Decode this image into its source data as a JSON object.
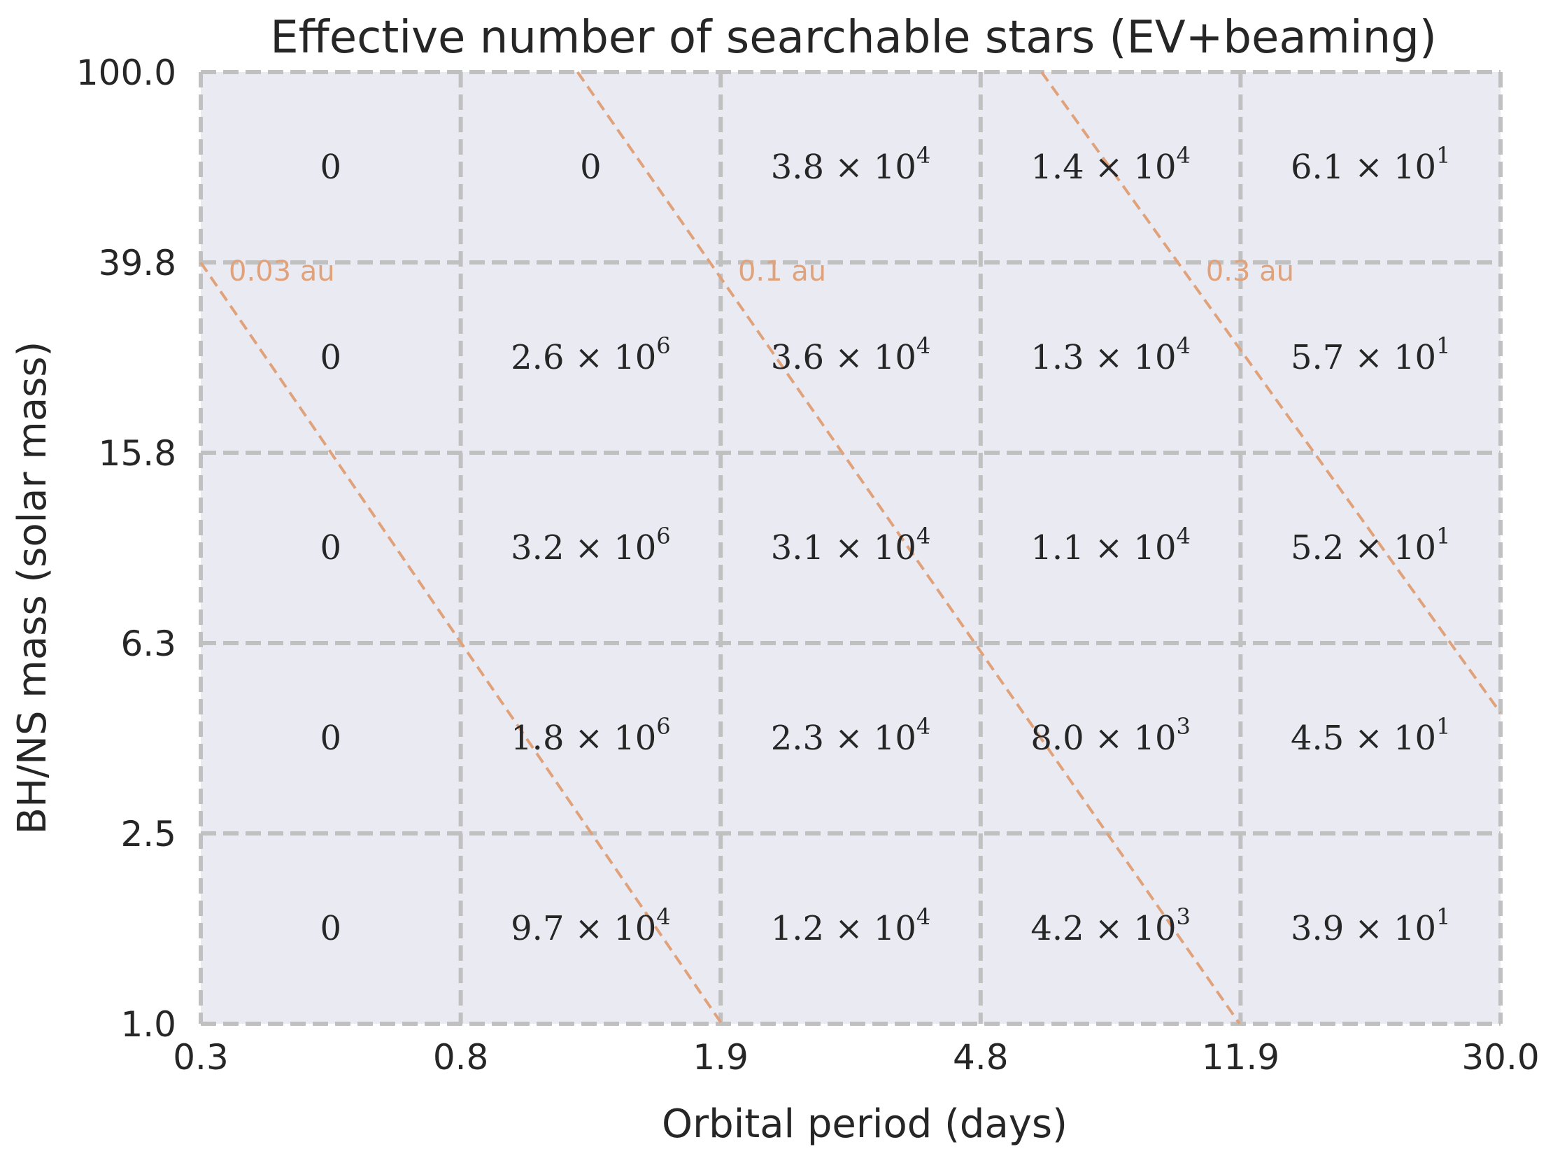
{
  "chart_data": {
    "type": "heatmap",
    "title": "Effective number of searchable stars (EV+beaming)",
    "xlabel": "Orbital period (days)",
    "ylabel": "BH/NS mass (solar mass)",
    "x_scale": "log",
    "y_scale": "log",
    "xlim": [
      0.3,
      30.0
    ],
    "ylim": [
      1.0,
      100.0
    ],
    "x_ticks": [
      "0.3",
      "0.8",
      "1.9",
      "4.8",
      "11.9",
      "30.0"
    ],
    "y_ticks": [
      "1.0",
      "2.5",
      "6.3",
      "15.8",
      "39.8",
      "100.0"
    ],
    "rows_top_to_bottom": [
      [
        {
          "text": "0"
        },
        {
          "text": "0"
        },
        {
          "mantissa": "3.8",
          "exp": "4"
        },
        {
          "mantissa": "1.4",
          "exp": "4"
        },
        {
          "mantissa": "6.1",
          "exp": "1"
        }
      ],
      [
        {
          "text": "0"
        },
        {
          "mantissa": "2.6",
          "exp": "6"
        },
        {
          "mantissa": "3.6",
          "exp": "4"
        },
        {
          "mantissa": "1.3",
          "exp": "4"
        },
        {
          "mantissa": "5.7",
          "exp": "1"
        }
      ],
      [
        {
          "text": "0"
        },
        {
          "mantissa": "3.2",
          "exp": "6"
        },
        {
          "mantissa": "3.1",
          "exp": "4"
        },
        {
          "mantissa": "1.1",
          "exp": "4"
        },
        {
          "mantissa": "5.2",
          "exp": "1"
        }
      ],
      [
        {
          "text": "0"
        },
        {
          "mantissa": "1.8",
          "exp": "6"
        },
        {
          "mantissa": "2.3",
          "exp": "4"
        },
        {
          "mantissa": "8.0",
          "exp": "3"
        },
        {
          "mantissa": "4.5",
          "exp": "1"
        }
      ],
      [
        {
          "text": "0"
        },
        {
          "mantissa": "9.7",
          "exp": "4"
        },
        {
          "mantissa": "1.2",
          "exp": "4"
        },
        {
          "mantissa": "4.2",
          "exp": "3"
        },
        {
          "mantissa": "3.9",
          "exp": "1"
        }
      ]
    ],
    "separation_lines": [
      {
        "label": "0.03 au",
        "points": [
          [
            0.3,
            39.8
          ],
          [
            1.9,
            1.0
          ]
        ]
      },
      {
        "label": "0.1 au",
        "points": [
          [
            1.14,
            100.0
          ],
          [
            11.9,
            1.0
          ]
        ]
      },
      {
        "label": "0.3 au",
        "points": [
          [
            5.9,
            100.0
          ],
          [
            30.0,
            4.5
          ]
        ]
      }
    ],
    "colors": {
      "background": "#eaeaf2",
      "grid": "#c0c0c0",
      "separation": "#e0a27a",
      "text": "#262626"
    }
  }
}
